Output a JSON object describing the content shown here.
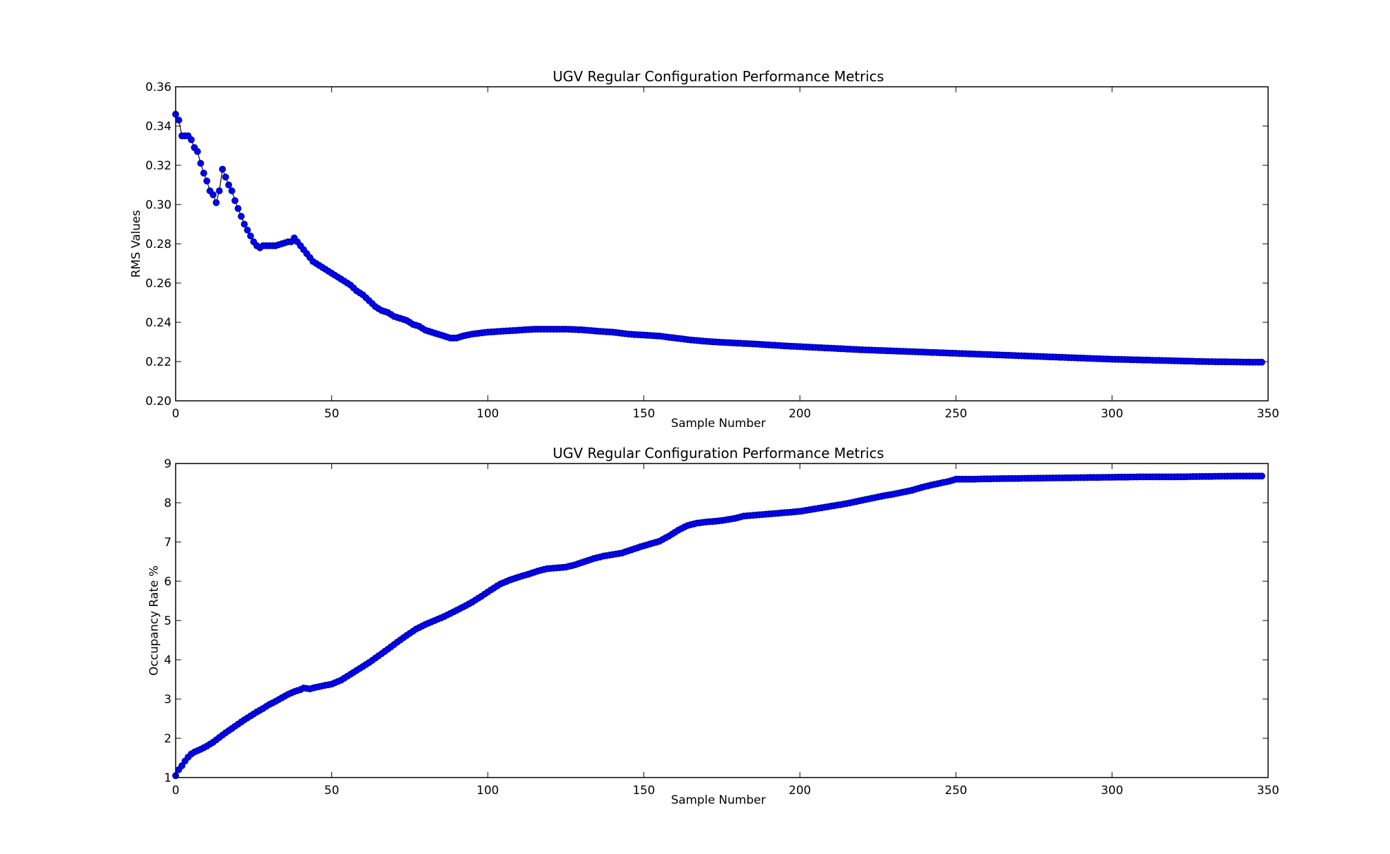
{
  "chart_data": [
    {
      "type": "line",
      "title": "UGV Regular Configuration Performance  Metrics",
      "xlabel": "Sample Number",
      "ylabel": "RMS Values",
      "xlim": [
        0,
        350
      ],
      "ylim": [
        0.2,
        0.36
      ],
      "xticks": [
        0,
        50,
        100,
        150,
        200,
        250,
        300,
        350
      ],
      "yticks": [
        0.2,
        0.22,
        0.24,
        0.26,
        0.28,
        0.3,
        0.32,
        0.34,
        0.36
      ],
      "ytick_labels": [
        "0.20",
        "0.22",
        "0.24",
        "0.26",
        "0.28",
        "0.30",
        "0.32",
        "0.34",
        "0.36"
      ],
      "grid": false,
      "marker": "circle",
      "series": [
        {
          "color": "#0000ff",
          "line_color": "#000000",
          "points": [
            [
              0,
              0.346
            ],
            [
              1,
              0.343
            ],
            [
              2,
              0.335
            ],
            [
              3,
              0.335
            ],
            [
              4,
              0.335
            ],
            [
              5,
              0.333
            ],
            [
              6,
              0.329
            ],
            [
              7,
              0.327
            ],
            [
              8,
              0.321
            ],
            [
              9,
              0.316
            ],
            [
              10,
              0.312
            ],
            [
              11,
              0.307
            ],
            [
              12,
              0.305
            ],
            [
              13,
              0.301
            ],
            [
              14,
              0.307
            ],
            [
              15,
              0.318
            ],
            [
              16,
              0.314
            ],
            [
              17,
              0.31
            ],
            [
              18,
              0.307
            ],
            [
              19,
              0.302
            ],
            [
              20,
              0.298
            ],
            [
              21,
              0.294
            ],
            [
              22,
              0.29
            ],
            [
              23,
              0.287
            ],
            [
              24,
              0.284
            ],
            [
              25,
              0.281
            ],
            [
              26,
              0.279
            ],
            [
              27,
              0.278
            ],
            [
              28,
              0.279
            ],
            [
              30,
              0.279
            ],
            [
              32,
              0.279
            ],
            [
              34,
              0.28
            ],
            [
              36,
              0.281
            ],
            [
              37,
              0.281
            ],
            [
              38,
              0.283
            ],
            [
              40,
              0.279
            ],
            [
              42,
              0.275
            ],
            [
              44,
              0.271
            ],
            [
              46,
              0.269
            ],
            [
              48,
              0.267
            ],
            [
              50,
              0.265
            ],
            [
              52,
              0.263
            ],
            [
              54,
              0.261
            ],
            [
              56,
              0.259
            ],
            [
              58,
              0.256
            ],
            [
              60,
              0.254
            ],
            [
              62,
              0.251
            ],
            [
              64,
              0.248
            ],
            [
              66,
              0.246
            ],
            [
              68,
              0.245
            ],
            [
              70,
              0.243
            ],
            [
              72,
              0.242
            ],
            [
              74,
              0.241
            ],
            [
              76,
              0.239
            ],
            [
              78,
              0.238
            ],
            [
              80,
              0.236
            ],
            [
              82,
              0.235
            ],
            [
              84,
              0.234
            ],
            [
              86,
              0.233
            ],
            [
              88,
              0.232
            ],
            [
              90,
              0.232
            ],
            [
              92,
              0.233
            ],
            [
              95,
              0.234
            ],
            [
              100,
              0.235
            ],
            [
              105,
              0.2355
            ],
            [
              110,
              0.236
            ],
            [
              115,
              0.2365
            ],
            [
              120,
              0.2365
            ],
            [
              125,
              0.2365
            ],
            [
              130,
              0.2362
            ],
            [
              135,
              0.2355
            ],
            [
              140,
              0.235
            ],
            [
              145,
              0.234
            ],
            [
              150,
              0.2335
            ],
            [
              155,
              0.233
            ],
            [
              160,
              0.232
            ],
            [
              165,
              0.231
            ],
            [
              170,
              0.2303
            ],
            [
              175,
              0.2298
            ],
            [
              180,
              0.2294
            ],
            [
              185,
              0.229
            ],
            [
              190,
              0.2285
            ],
            [
              195,
              0.228
            ],
            [
              200,
              0.2276
            ],
            [
              205,
              0.2272
            ],
            [
              210,
              0.2268
            ],
            [
              215,
              0.2264
            ],
            [
              220,
              0.226
            ],
            [
              225,
              0.2257
            ],
            [
              230,
              0.2254
            ],
            [
              235,
              0.2251
            ],
            [
              240,
              0.2248
            ],
            [
              245,
              0.2245
            ],
            [
              250,
              0.2242
            ],
            [
              255,
              0.2239
            ],
            [
              260,
              0.2236
            ],
            [
              265,
              0.2233
            ],
            [
              270,
              0.223
            ],
            [
              275,
              0.2227
            ],
            [
              280,
              0.2224
            ],
            [
              285,
              0.2221
            ],
            [
              290,
              0.2218
            ],
            [
              295,
              0.2215
            ],
            [
              300,
              0.2212
            ],
            [
              305,
              0.221
            ],
            [
              310,
              0.2208
            ],
            [
              315,
              0.2206
            ],
            [
              320,
              0.2204
            ],
            [
              325,
              0.2202
            ],
            [
              330,
              0.22
            ],
            [
              335,
              0.2199
            ],
            [
              340,
              0.2198
            ],
            [
              345,
              0.2197
            ],
            [
              348,
              0.2197
            ]
          ]
        }
      ]
    },
    {
      "type": "line",
      "title": "UGV Regular Configuration Performance  Metrics",
      "xlabel": "Sample Number",
      "ylabel": "Occupancy Rate  %",
      "xlim": [
        0,
        350
      ],
      "ylim": [
        1,
        9
      ],
      "xticks": [
        0,
        50,
        100,
        150,
        200,
        250,
        300,
        350
      ],
      "yticks": [
        1,
        2,
        3,
        4,
        5,
        6,
        7,
        8,
        9
      ],
      "ytick_labels": [
        "1",
        "2",
        "3",
        "4",
        "5",
        "6",
        "7",
        "8",
        "9"
      ],
      "grid": false,
      "marker": "circle",
      "series": [
        {
          "color": "#0000ff",
          "line_color": "#000000",
          "points": [
            [
              0,
              1.05
            ],
            [
              1,
              1.2
            ],
            [
              2,
              1.3
            ],
            [
              3,
              1.42
            ],
            [
              4,
              1.52
            ],
            [
              5,
              1.6
            ],
            [
              6,
              1.65
            ],
            [
              8,
              1.72
            ],
            [
              10,
              1.8
            ],
            [
              12,
              1.9
            ],
            [
              14,
              2.02
            ],
            [
              16,
              2.14
            ],
            [
              18,
              2.25
            ],
            [
              20,
              2.36
            ],
            [
              22,
              2.47
            ],
            [
              24,
              2.57
            ],
            [
              26,
              2.67
            ],
            [
              28,
              2.76
            ],
            [
              30,
              2.86
            ],
            [
              32,
              2.94
            ],
            [
              34,
              3.03
            ],
            [
              36,
              3.12
            ],
            [
              38,
              3.19
            ],
            [
              40,
              3.24
            ],
            [
              41,
              3.28
            ],
            [
              43,
              3.26
            ],
            [
              45,
              3.3
            ],
            [
              48,
              3.35
            ],
            [
              50,
              3.38
            ],
            [
              53,
              3.48
            ],
            [
              56,
              3.63
            ],
            [
              59,
              3.78
            ],
            [
              62,
              3.93
            ],
            [
              65,
              4.1
            ],
            [
              68,
              4.27
            ],
            [
              71,
              4.45
            ],
            [
              74,
              4.62
            ],
            [
              77,
              4.78
            ],
            [
              80,
              4.9
            ],
            [
              83,
              5.0
            ],
            [
              86,
              5.1
            ],
            [
              89,
              5.22
            ],
            [
              92,
              5.34
            ],
            [
              95,
              5.47
            ],
            [
              98,
              5.62
            ],
            [
              101,
              5.78
            ],
            [
              104,
              5.93
            ],
            [
              107,
              6.03
            ],
            [
              110,
              6.11
            ],
            [
              113,
              6.18
            ],
            [
              116,
              6.26
            ],
            [
              119,
              6.32
            ],
            [
              122,
              6.34
            ],
            [
              125,
              6.36
            ],
            [
              128,
              6.42
            ],
            [
              131,
              6.5
            ],
            [
              134,
              6.58
            ],
            [
              137,
              6.64
            ],
            [
              140,
              6.68
            ],
            [
              143,
              6.72
            ],
            [
              146,
              6.8
            ],
            [
              149,
              6.88
            ],
            [
              152,
              6.95
            ],
            [
              155,
              7.02
            ],
            [
              158,
              7.15
            ],
            [
              161,
              7.3
            ],
            [
              164,
              7.42
            ],
            [
              167,
              7.48
            ],
            [
              170,
              7.51
            ],
            [
              173,
              7.53
            ],
            [
              176,
              7.56
            ],
            [
              179,
              7.6
            ],
            [
              182,
              7.66
            ],
            [
              185,
              7.68
            ],
            [
              188,
              7.7
            ],
            [
              191,
              7.72
            ],
            [
              194,
              7.74
            ],
            [
              197,
              7.76
            ],
            [
              200,
              7.78
            ],
            [
              203,
              7.82
            ],
            [
              206,
              7.86
            ],
            [
              209,
              7.9
            ],
            [
              212,
              7.94
            ],
            [
              215,
              7.98
            ],
            [
              218,
              8.03
            ],
            [
              221,
              8.08
            ],
            [
              224,
              8.13
            ],
            [
              227,
              8.18
            ],
            [
              230,
              8.22
            ],
            [
              233,
              8.27
            ],
            [
              236,
              8.32
            ],
            [
              239,
              8.39
            ],
            [
              242,
              8.45
            ],
            [
              245,
              8.5
            ],
            [
              248,
              8.55
            ],
            [
              250,
              8.6
            ],
            [
              255,
              8.6
            ],
            [
              260,
              8.61
            ],
            [
              270,
              8.62
            ],
            [
              280,
              8.63
            ],
            [
              290,
              8.64
            ],
            [
              300,
              8.65
            ],
            [
              310,
              8.66
            ],
            [
              320,
              8.66
            ],
            [
              330,
              8.67
            ],
            [
              340,
              8.68
            ],
            [
              348,
              8.68
            ]
          ]
        }
      ]
    }
  ]
}
